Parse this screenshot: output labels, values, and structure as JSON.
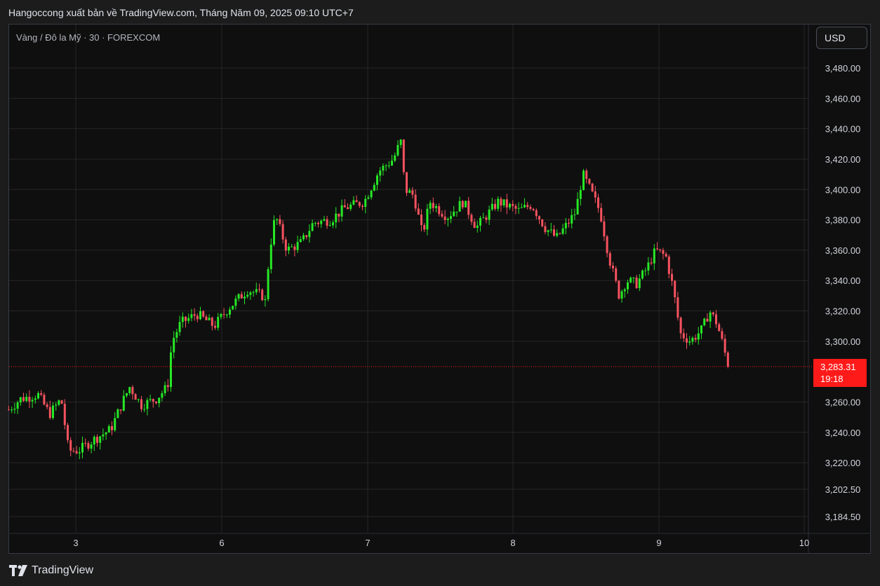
{
  "header": {
    "published": "Hangoccong xuất bản về TradingView.com, Tháng Năm 09, 2025 09:10 UTC+7"
  },
  "symbol": {
    "title": "Vàng / Đô la Mỹ · 30 · FOREXCOM"
  },
  "currency_button": "USD",
  "footer": {
    "brand": "TradingView"
  },
  "colors": {
    "up": "#26e826",
    "down": "#f7525f",
    "price_tag": "#ff1a1a",
    "grid": "#262626",
    "background": "#0f0f0f"
  },
  "chart_data": {
    "type": "candlestick",
    "symbol": "Vàng / Đô la Mỹ",
    "interval": "30",
    "exchange": "FOREXCOM",
    "currency": "USD",
    "x_tick_labels": [
      "3",
      "6",
      "7",
      "8",
      "9",
      "10"
    ],
    "y_tick_labels": [
      "3,480.00",
      "3,460.00",
      "3,440.00",
      "3,420.00",
      "3,400.00",
      "3,380.00",
      "3,360.00",
      "3,340.00",
      "3,320.00",
      "3,300.00",
      "3,260.00",
      "3,240.00",
      "3,220.00",
      "3,202.50",
      "3,184.50"
    ],
    "y_tick_values": [
      3480,
      3460,
      3440,
      3420,
      3400,
      3380,
      3360,
      3340,
      3320,
      3300,
      3260,
      3240,
      3220,
      3202.5,
      3184.5
    ],
    "ylim": [
      3179,
      3497
    ],
    "last_price": 3283.31,
    "last_price_label": "3,283.31",
    "countdown": "19:18",
    "grid": true,
    "waypoints": [
      {
        "d": 2.54,
        "p": 3255
      },
      {
        "d": 2.62,
        "p": 3262
      },
      {
        "d": 2.74,
        "p": 3265
      },
      {
        "d": 2.82,
        "p": 3252
      },
      {
        "d": 2.9,
        "p": 3262
      },
      {
        "d": 2.95,
        "p": 3228
      },
      {
        "d": 3.02,
        "p": 3228
      },
      {
        "d": 3.12,
        "p": 3235
      },
      {
        "d": 3.24,
        "p": 3242
      },
      {
        "d": 3.33,
        "p": 3262
      },
      {
        "d": 3.37,
        "p": 3270
      },
      {
        "d": 3.45,
        "p": 3258
      },
      {
        "d": 3.55,
        "p": 3262
      },
      {
        "d": 3.63,
        "p": 3270
      },
      {
        "d": 3.66,
        "p": 3300
      },
      {
        "d": 3.72,
        "p": 3312
      },
      {
        "d": 3.83,
        "p": 3318
      },
      {
        "d": 3.95,
        "p": 3310
      },
      {
        "d": 4.05,
        "p": 3322
      },
      {
        "d": 4.18,
        "p": 3334
      },
      {
        "d": 4.28,
        "p": 3330
      },
      {
        "d": 4.3,
        "p": 3326
      },
      {
        "d": 4.33,
        "p": 3360
      },
      {
        "d": 4.37,
        "p": 3383
      },
      {
        "d": 4.45,
        "p": 3360
      },
      {
        "d": 4.55,
        "p": 3365
      },
      {
        "d": 4.63,
        "p": 3378
      },
      {
        "d": 4.75,
        "p": 3380
      },
      {
        "d": 4.85,
        "p": 3388
      },
      {
        "d": 4.98,
        "p": 3392
      },
      {
        "d": 5.08,
        "p": 3412
      },
      {
        "d": 5.18,
        "p": 3420
      },
      {
        "d": 5.23,
        "p": 3432
      },
      {
        "d": 5.26,
        "p": 3400
      },
      {
        "d": 5.32,
        "p": 3396
      },
      {
        "d": 5.38,
        "p": 3370
      },
      {
        "d": 5.43,
        "p": 3392
      },
      {
        "d": 5.55,
        "p": 3382
      },
      {
        "d": 5.66,
        "p": 3392
      },
      {
        "d": 5.75,
        "p": 3375
      },
      {
        "d": 5.9,
        "p": 3392
      },
      {
        "d": 6.04,
        "p": 3386
      },
      {
        "d": 6.13,
        "p": 3390
      },
      {
        "d": 6.22,
        "p": 3375
      },
      {
        "d": 6.3,
        "p": 3368
      },
      {
        "d": 6.38,
        "p": 3378
      },
      {
        "d": 6.43,
        "p": 3385
      },
      {
        "d": 6.48,
        "p": 3410
      },
      {
        "d": 6.53,
        "p": 3400
      },
      {
        "d": 6.6,
        "p": 3385
      },
      {
        "d": 6.66,
        "p": 3355
      },
      {
        "d": 6.73,
        "p": 3330
      },
      {
        "d": 6.78,
        "p": 3340
      },
      {
        "d": 6.85,
        "p": 3338
      },
      {
        "d": 6.92,
        "p": 3348
      },
      {
        "d": 6.98,
        "p": 3360
      },
      {
        "d": 7.05,
        "p": 3356
      },
      {
        "d": 7.1,
        "p": 3335
      },
      {
        "d": 7.15,
        "p": 3305
      },
      {
        "d": 7.22,
        "p": 3300
      },
      {
        "d": 7.3,
        "p": 3308
      },
      {
        "d": 7.35,
        "p": 3320
      },
      {
        "d": 7.4,
        "p": 3312
      },
      {
        "d": 7.43,
        "p": 3302
      },
      {
        "d": 7.48,
        "p": 3283.31
      }
    ]
  }
}
